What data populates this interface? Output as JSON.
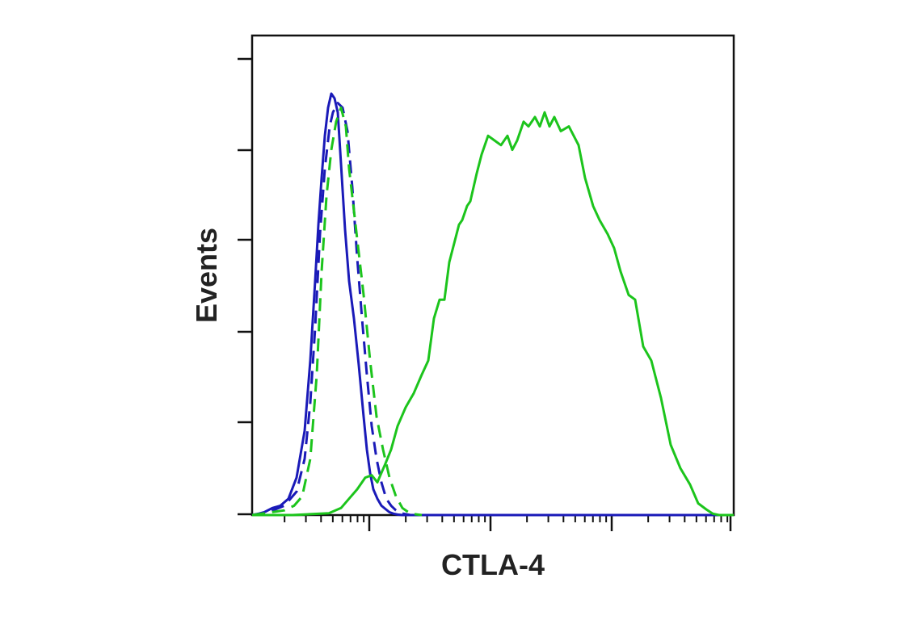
{
  "chart_data": {
    "type": "line",
    "title": "",
    "xlabel": "CTLA-4",
    "ylabel": "Events",
    "x_scale": "log",
    "x_tick_labels": [],
    "y_tick_labels": [],
    "grid": false,
    "legend": "none",
    "series": [
      {
        "style": "solid",
        "color": "#1a1ab8",
        "x": [
          0,
          8,
          15,
          25,
          35,
          45,
          55,
          65,
          72,
          78,
          82,
          86,
          90,
          94,
          98,
          102,
          106,
          110,
          115,
          120,
          126,
          132,
          138,
          142,
          146,
          150,
          155,
          160,
          165,
          170,
          175,
          180,
          186,
          192,
          200,
          210,
          220,
          240,
          300,
          400,
          500,
          596
        ],
        "y": [
          0,
          0.3,
          0.6,
          1.5,
          2.0,
          3.5,
          8.0,
          18,
          33,
          50,
          62,
          72,
          81,
          87,
          90,
          89,
          86,
          75,
          61,
          50,
          42,
          32,
          21,
          14,
          9,
          5.5,
          3.5,
          2.0,
          1.3,
          0.6,
          0.3,
          0.1,
          0,
          0,
          0,
          0,
          0,
          0,
          0,
          0,
          0,
          0
        ]
      },
      {
        "style": "dashed",
        "color": "#1a1ab8",
        "x": [
          0,
          20,
          40,
          55,
          65,
          72,
          78,
          84,
          90,
          96,
          100,
          106,
          112,
          118,
          124,
          130,
          136,
          142,
          148,
          154,
          160,
          166,
          172,
          178,
          184,
          190,
          196
        ],
        "y": [
          0,
          0.6,
          2.0,
          5.0,
          12,
          24,
          40,
          60,
          74,
          83,
          86,
          88,
          87,
          82,
          70,
          55,
          42,
          30,
          19,
          12,
          7,
          3.5,
          2,
          1,
          0.4,
          0.2,
          0
        ]
      },
      {
        "style": "dashed",
        "color": "#1cc41c",
        "x": [
          0,
          20,
          40,
          52,
          62,
          72,
          80,
          86,
          92,
          98,
          104,
          110,
          116,
          120,
          126,
          132,
          138,
          146,
          154,
          162,
          170,
          178,
          186,
          196,
          210
        ],
        "y": [
          0,
          0.5,
          1.0,
          2.0,
          4.0,
          12,
          30,
          52,
          68,
          78,
          84,
          87,
          83,
          74,
          65,
          56,
          47,
          33,
          21,
          14,
          8,
          4,
          1.5,
          0.3,
          0
        ]
      },
      {
        "style": "solid",
        "color": "#1cc41c",
        "x": [
          0,
          50,
          95,
          110,
          120,
          130,
          140,
          148,
          155,
          165,
          172,
          180,
          190,
          200,
          210,
          218,
          225,
          232,
          238,
          244,
          250,
          256,
          260,
          266,
          270,
          278,
          284,
          292,
          300,
          308,
          316,
          322,
          328,
          336,
          342,
          350,
          356,
          362,
          368,
          374,
          382,
          392,
          404,
          412,
          422,
          430,
          440,
          448,
          456,
          466,
          474,
          484,
          494,
          506,
          518,
          530,
          542,
          552,
          562,
          570,
          578,
          584,
          590,
          596
        ],
        "y": [
          0,
          0,
          0.4,
          1.5,
          3.5,
          5.5,
          8.0,
          8.5,
          7.0,
          11,
          14,
          19,
          23,
          26,
          30,
          33,
          42,
          46,
          46,
          54,
          58,
          62,
          63,
          66,
          67,
          73,
          77,
          81,
          80,
          79,
          81,
          78,
          80,
          84,
          83,
          85,
          83,
          86,
          83,
          85,
          82,
          83,
          79,
          72,
          66,
          63,
          60,
          57,
          52,
          47,
          46,
          36,
          33,
          25,
          15,
          10,
          6.5,
          2.5,
          1.2,
          0.3,
          0,
          0,
          0,
          0
        ]
      }
    ]
  }
}
